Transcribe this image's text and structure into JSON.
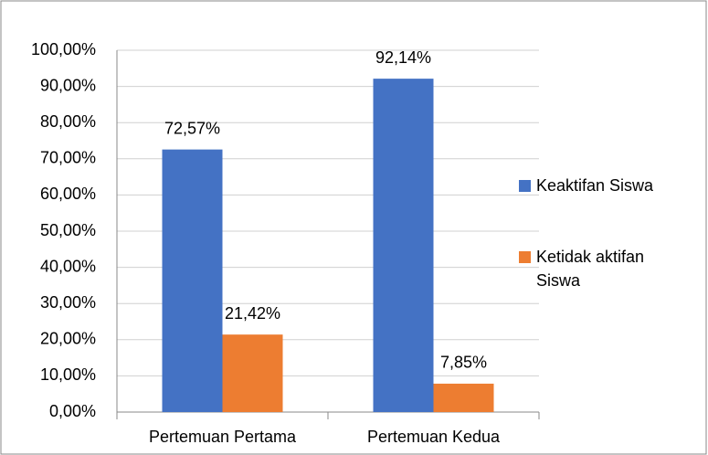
{
  "chart_data": {
    "type": "bar",
    "categories": [
      "Pertemuan Pertama",
      "Pertemuan Kedua"
    ],
    "series": [
      {
        "name": "Keaktifan Siswa",
        "color": "#4472c4",
        "values": [
          72.57,
          92.14
        ],
        "value_labels": [
          "72,57%",
          "92,14%"
        ]
      },
      {
        "name": "Ketidak aktifan Siswa",
        "color": "#ed7d31",
        "values": [
          21.42,
          7.85
        ],
        "value_labels": [
          "21,42%",
          "7,85%"
        ]
      }
    ],
    "ylim": [
      0,
      100
    ],
    "yticks": [
      {
        "value": 0,
        "label": "0,00%"
      },
      {
        "value": 10,
        "label": "10,00%"
      },
      {
        "value": 20,
        "label": "20,00%"
      },
      {
        "value": 30,
        "label": "30,00%"
      },
      {
        "value": 40,
        "label": "40,00%"
      },
      {
        "value": 50,
        "label": "50,00%"
      },
      {
        "value": 60,
        "label": "60,00%"
      },
      {
        "value": 70,
        "label": "70,00%"
      },
      {
        "value": 80,
        "label": "80,00%"
      },
      {
        "value": 90,
        "label": "90,00%"
      },
      {
        "value": 100,
        "label": "100,00%"
      }
    ],
    "grid": true,
    "legend": "right"
  }
}
